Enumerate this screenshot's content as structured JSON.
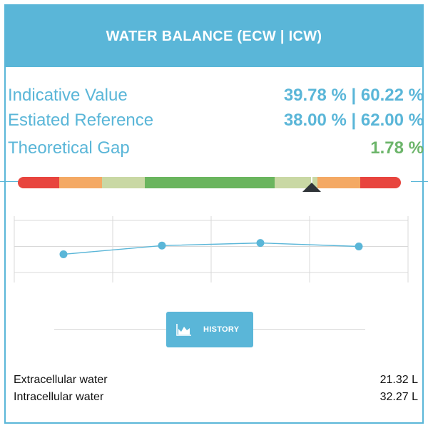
{
  "header": {
    "title": "WATER BALANCE (ECW | ICW)"
  },
  "metrics": [
    {
      "label": "Indicative Value",
      "value": "39.78 % | 60.22 %"
    },
    {
      "label": "Estiated Reference",
      "value": "38.00 % | 62.00 %"
    },
    {
      "label": "Theoretical Gap",
      "value": "1.78 %"
    }
  ],
  "gauge": {
    "segments": [
      {
        "color": "#e8453e",
        "fraction": 0.108
      },
      {
        "color": "#f4a964",
        "fraction": 0.112
      },
      {
        "color": "#c9d8a4",
        "fraction": 0.112
      },
      {
        "color": "#6ab55e",
        "fraction": 0.338
      },
      {
        "color": "#c9d8a4",
        "fraction": 0.112
      },
      {
        "color": "#f4a964",
        "fraction": 0.112
      },
      {
        "color": "#e8453e",
        "fraction": 0.106
      }
    ],
    "marker_fraction": 0.768,
    "pointer_color": "#2f3438"
  },
  "chart_data": {
    "type": "line",
    "points": [
      -0.45,
      0.05,
      0.2,
      0.0
    ],
    "ylim": [
      -1.5,
      1.5
    ],
    "line_color": "#5ab6d8",
    "grid": true
  },
  "history_button": {
    "label": "HISTORY",
    "icon": "area-chart-icon"
  },
  "water": [
    {
      "label": "Extracellular water",
      "value": "21.32 L"
    },
    {
      "label": "Intracellular water",
      "value": "32.27 L"
    }
  ],
  "colors": {
    "accent": "#5ab6d8",
    "good": "#6cb56a"
  }
}
